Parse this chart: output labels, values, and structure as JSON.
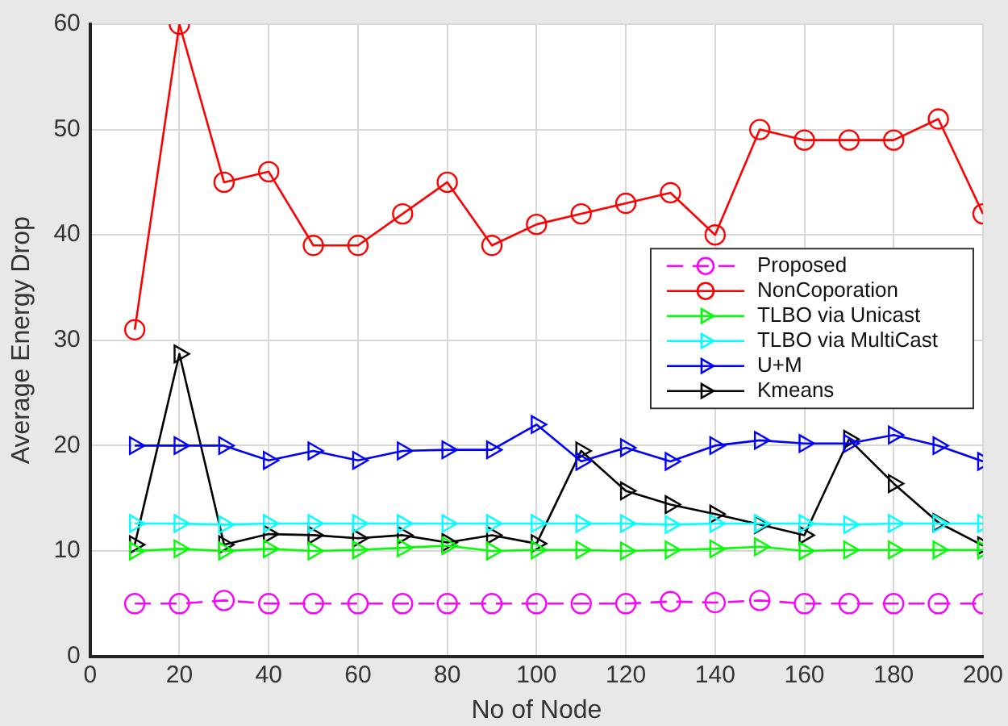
{
  "chart_data": {
    "type": "line",
    "xlabel": "No of Node",
    "ylabel": "Average Energy Drop",
    "x": [
      10,
      20,
      30,
      40,
      50,
      60,
      70,
      80,
      90,
      100,
      110,
      120,
      130,
      140,
      150,
      160,
      170,
      180,
      190,
      200
    ],
    "xlim": [
      0,
      200
    ],
    "xticks": [
      0,
      20,
      40,
      60,
      80,
      100,
      120,
      140,
      160,
      180,
      200
    ],
    "ylim": [
      0,
      60
    ],
    "yticks": [
      0,
      10,
      20,
      30,
      40,
      50,
      60
    ],
    "grid": true,
    "legend": "right",
    "series": [
      {
        "name": "Proposed",
        "color": "#ff00ff",
        "marker": "circle",
        "line_style": "dashed",
        "values": [
          5,
          5,
          5.3,
          5,
          5,
          5,
          5,
          5,
          5,
          5,
          5,
          5,
          5.2,
          5.1,
          5.3,
          5,
          5,
          5,
          5,
          5
        ]
      },
      {
        "name": "NonCoporation",
        "color": "#ff0000",
        "marker": "circle",
        "values": [
          31,
          60,
          45,
          46,
          39,
          39,
          42,
          45,
          39,
          41,
          42,
          43,
          44,
          40,
          50,
          49,
          49,
          49,
          51,
          42
        ]
      },
      {
        "name": "TLBO via Unicast",
        "color": "#00ff00",
        "marker": "triangle",
        "values": [
          10,
          10.2,
          10,
          10.2,
          10,
          10.1,
          10.3,
          10.5,
          10,
          10.1,
          10.1,
          10,
          10.1,
          10.2,
          10.4,
          10,
          10.1,
          10.1,
          10.1,
          10.1
        ]
      },
      {
        "name": "TLBO via MultiCast",
        "color": "#00ffff",
        "marker": "triangle",
        "values": [
          12.6,
          12.6,
          12.5,
          12.6,
          12.6,
          12.6,
          12.6,
          12.6,
          12.6,
          12.6,
          12.6,
          12.6,
          12.5,
          12.6,
          12.6,
          12.6,
          12.5,
          12.6,
          12.6,
          12.6
        ]
      },
      {
        "name": "U+M",
        "color": "#0000ff",
        "marker": "triangle",
        "values": [
          20,
          20,
          20,
          18.6,
          19.5,
          18.6,
          19.5,
          19.6,
          19.6,
          22,
          18.5,
          19.8,
          18.5,
          20,
          20.5,
          20.2,
          20.2,
          21,
          20,
          18.5
        ]
      },
      {
        "name": "Kmeans",
        "color": "#000000",
        "marker": "triangle",
        "values": [
          10.6,
          28.7,
          10.6,
          11.6,
          11.5,
          11.2,
          11.5,
          10.8,
          11.5,
          10.7,
          19.5,
          15.7,
          14.4,
          13.5,
          12.5,
          11.5,
          20.6,
          16.4,
          12.7,
          10.5
        ]
      }
    ]
  }
}
